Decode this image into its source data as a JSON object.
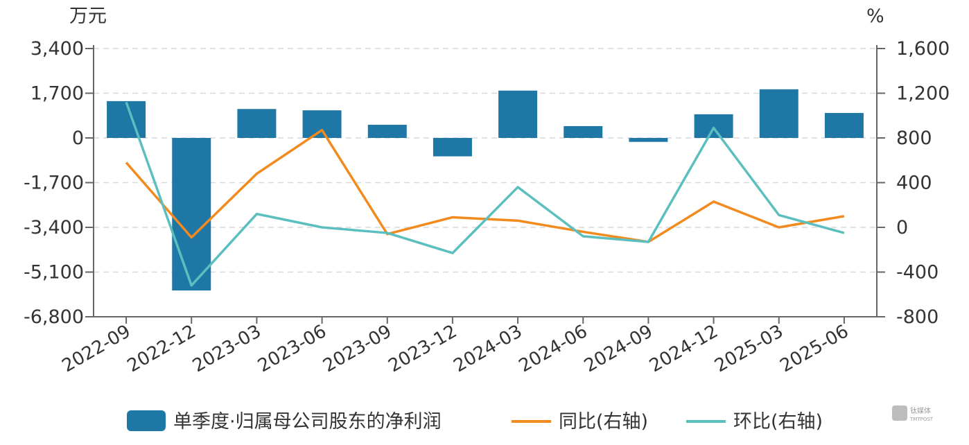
{
  "chart_data": {
    "type": "bar",
    "left_unit": "万元",
    "right_unit": "%",
    "categories": [
      "2022-09",
      "2022-12",
      "2023-03",
      "2023-06",
      "2023-09",
      "2023-12",
      "2024-03",
      "2024-06",
      "2024-09",
      "2024-12",
      "2025-03",
      "2025-06"
    ],
    "series": [
      {
        "name": "单季度·归属母公司股东的净利润",
        "type": "bar",
        "axis": "left",
        "color": "#1f77a6",
        "values": [
          1400,
          -5800,
          1100,
          1050,
          500,
          -700,
          1800,
          450,
          -150,
          900,
          1850,
          950
        ]
      },
      {
        "name": "同比(右轴)",
        "type": "line",
        "axis": "right",
        "color": "#f28a1e",
        "values": [
          580,
          -90,
          480,
          870,
          -60,
          90,
          60,
          -40,
          -130,
          230,
          0,
          100
        ]
      },
      {
        "name": "环比(右轴)",
        "type": "line",
        "axis": "right",
        "color": "#5bbfbf",
        "values": [
          1120,
          -520,
          120,
          0,
          -50,
          -230,
          360,
          -80,
          -130,
          890,
          110,
          -50
        ]
      }
    ],
    "left_axis": {
      "ylim": [
        -6800,
        3400
      ],
      "ticks": [
        3400,
        1700,
        0,
        -1700,
        -3400,
        -5100,
        -6800
      ],
      "tick_labels": [
        "3,400",
        "1,700",
        "0",
        "-1,700",
        "-3,400",
        "-5,100",
        "-6,800"
      ]
    },
    "right_axis": {
      "ylim": [
        -800,
        1600
      ],
      "ticks": [
        1600,
        1200,
        800,
        400,
        0,
        -400,
        -800
      ],
      "tick_labels": [
        "1,600",
        "1,200",
        "800",
        "400",
        "0",
        "-400",
        "-800"
      ]
    },
    "grid": true,
    "legend": "bottom"
  },
  "watermark": {
    "text_main": "钛媒体",
    "text_sub": "TMTPOST"
  }
}
